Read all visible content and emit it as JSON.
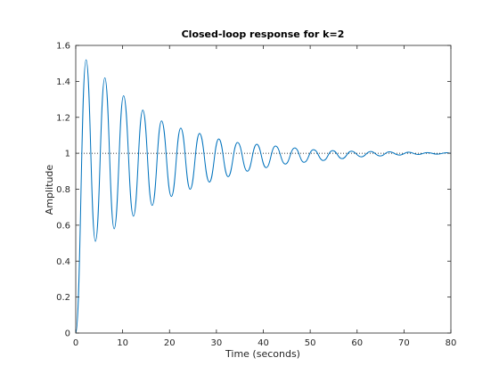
{
  "chart_data": {
    "type": "line",
    "title": "Closed-loop response for k=2",
    "xlabel": "Time (seconds)",
    "ylabel": "Amplitude",
    "xlim": [
      0,
      80
    ],
    "ylim": [
      0,
      1.6
    ],
    "xticks": [
      "0",
      "10",
      "20",
      "30",
      "40",
      "50",
      "60",
      "70",
      "80"
    ],
    "yticks": [
      "0",
      "0.2",
      "0.4",
      "0.6",
      "0.8",
      "1",
      "1.2",
      "1.4",
      "1.6"
    ],
    "grid": false,
    "reference_level": 1,
    "series": [
      {
        "color": "#0072bd",
        "x": [
          0,
          2.2,
          4.2,
          6.2,
          8.2,
          10.2,
          12.3,
          14.3,
          16.3,
          18.3,
          20.4,
          22.4,
          24.4,
          26.4,
          28.5,
          30.5,
          32.5,
          34.5,
          36.6,
          38.6,
          40.6,
          42.6,
          44.7,
          46.7,
          48.7,
          50.7,
          52.8,
          54.8,
          56.8,
          58.8,
          60.9,
          62.9,
          64.9,
          66.9,
          69.0,
          71.0,
          73.0,
          75.0,
          77.1,
          79.1,
          80
        ],
        "y": [
          0,
          1.52,
          0.51,
          1.42,
          0.58,
          1.32,
          0.65,
          1.24,
          0.71,
          1.18,
          0.76,
          1.14,
          0.8,
          1.11,
          0.84,
          1.08,
          0.87,
          1.06,
          0.9,
          1.05,
          0.92,
          1.04,
          0.94,
          1.03,
          0.95,
          1.02,
          0.96,
          1.015,
          0.97,
          1.012,
          0.98,
          1.01,
          0.985,
          1.008,
          0.99,
          1.006,
          0.993,
          1.004,
          0.995,
          1.003,
          1.0
        ]
      }
    ]
  }
}
